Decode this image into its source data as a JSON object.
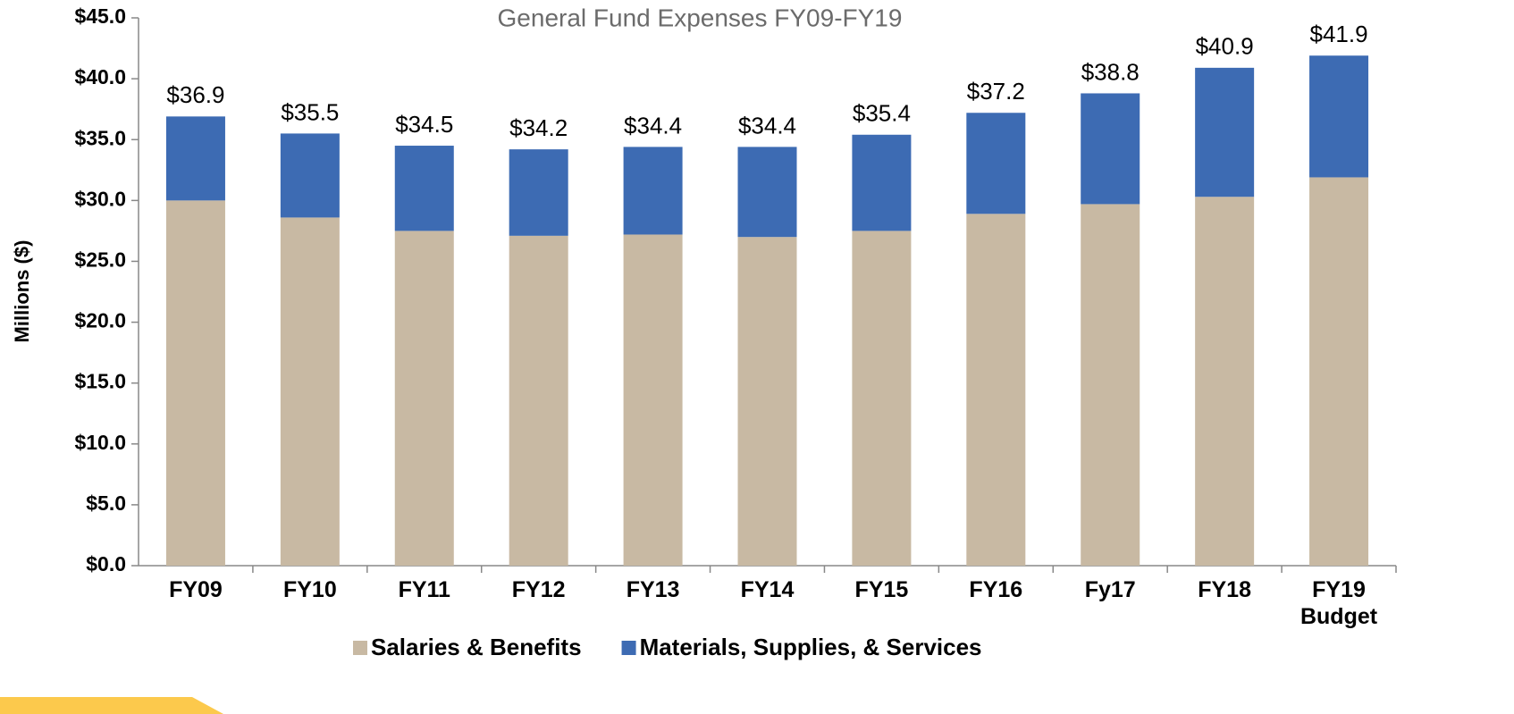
{
  "chart_data": {
    "type": "stacked_bar",
    "title": "General Fund Expenses FY09-FY19",
    "y_label": "Millions ($)",
    "categories": [
      "FY09",
      "FY10",
      "FY11",
      "FY12",
      "FY13",
      "FY14",
      "FY15",
      "FY16",
      "Fy17",
      "FY18",
      "FY19 Budget"
    ],
    "series": [
      {
        "name": "Salaries & Benefits",
        "color": "#c8b9a3",
        "values": [
          30.0,
          28.6,
          27.5,
          27.1,
          27.2,
          27.0,
          27.5,
          28.9,
          29.7,
          30.3,
          31.9
        ]
      },
      {
        "name": "Materials, Supplies, & Services",
        "color": "#3d6bb3",
        "values": [
          6.9,
          6.9,
          7.0,
          7.1,
          7.2,
          7.4,
          7.9,
          8.3,
          9.1,
          10.6,
          10.0
        ]
      }
    ],
    "totals": [
      36.9,
      35.5,
      34.5,
      34.2,
      34.4,
      34.4,
      35.4,
      37.2,
      38.8,
      40.9,
      41.9
    ],
    "total_labels": [
      "$36.9",
      "$35.5",
      "$34.5",
      "$34.2",
      "$34.4",
      "$34.4",
      "$35.4",
      "$37.2",
      "$38.8",
      "$40.9",
      "$41.9"
    ],
    "ylim": [
      0,
      45
    ],
    "yticks": [
      {
        "value": 0,
        "label": "$0.0"
      },
      {
        "value": 5,
        "label": "$5.0"
      },
      {
        "value": 10,
        "label": "$10.0"
      },
      {
        "value": 15,
        "label": "$15.0"
      },
      {
        "value": 20,
        "label": "$20.0"
      },
      {
        "value": 25,
        "label": "$25.0"
      },
      {
        "value": 30,
        "label": "$30.0"
      },
      {
        "value": 35,
        "label": "$35.0"
      },
      {
        "value": 40,
        "label": "$40.0"
      },
      {
        "value": 45,
        "label": "$45.0"
      }
    ],
    "grid": false
  }
}
